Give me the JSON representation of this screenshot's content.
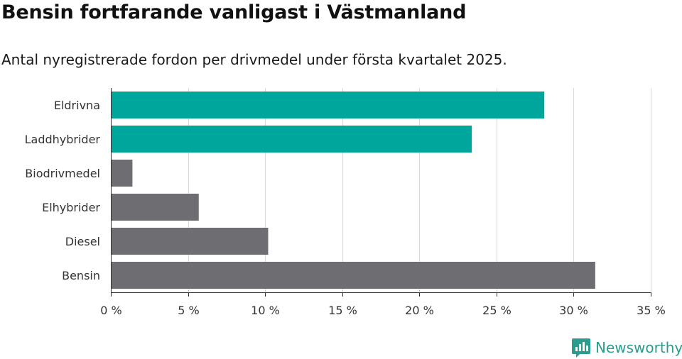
{
  "header": {
    "title": "Bensin fortfarande vanligast i Västmanland",
    "subtitle": "Antal nyregistrerade fordon per drivmedel under första kvartalet 2025."
  },
  "chart_data": {
    "type": "bar",
    "orientation": "horizontal",
    "categories": [
      "Eldrivna",
      "Laddhybrider",
      "Biodrivmedel",
      "Elhybrider",
      "Diesel",
      "Bensin"
    ],
    "values": [
      28.1,
      23.4,
      1.4,
      5.7,
      10.2,
      31.4
    ],
    "colors": [
      "#00a59b",
      "#00a59b",
      "#6e6d72",
      "#6e6d72",
      "#6e6d72",
      "#6e6d72"
    ],
    "xlim": [
      0,
      35
    ],
    "xticks": [
      0,
      5,
      10,
      15,
      20,
      25,
      30,
      35
    ],
    "xtick_labels": [
      "0 %",
      "5 %",
      "10 %",
      "15 %",
      "20 %",
      "25 %",
      "30 %",
      "35 %"
    ],
    "grid": true
  },
  "brand": {
    "name": "Newsworthy",
    "icon": "newsworthy-logo-icon",
    "color": "#2a9d8f"
  }
}
